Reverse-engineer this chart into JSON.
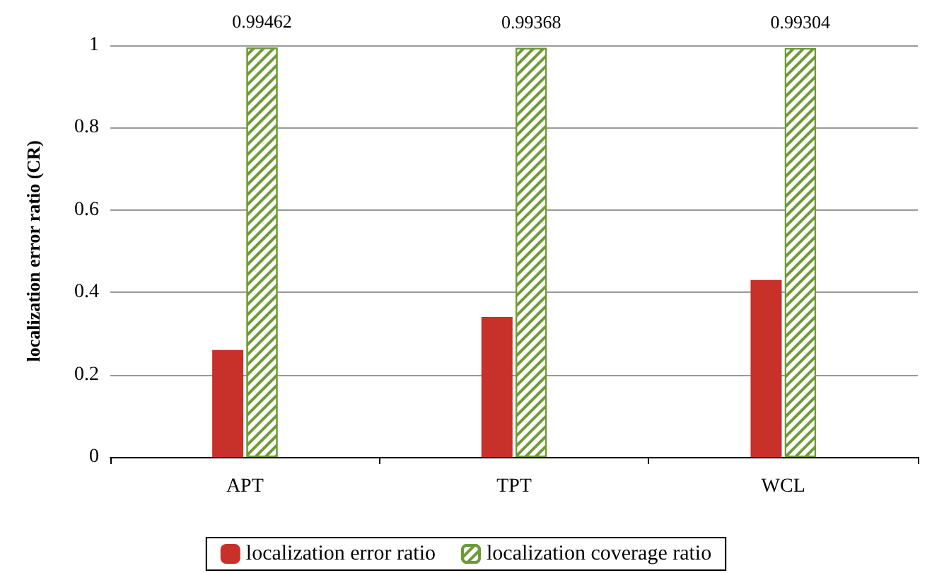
{
  "chart_data": {
    "type": "bar",
    "ylabel": "localization error ratio (CR)",
    "categories": [
      "APT",
      "TPT",
      "WCL"
    ],
    "series": [
      {
        "name": "localization error ratio",
        "color": "#c8302a",
        "values": [
          0.26,
          0.34,
          0.43
        ]
      },
      {
        "name": "localization coverage ratio",
        "color": "#6e9b35",
        "values": [
          0.99462,
          0.99368,
          0.99304
        ],
        "value_labels": [
          "0.99462",
          "0.99368",
          "0.99304"
        ]
      }
    ],
    "ylim": [
      0,
      1
    ],
    "yticks": [
      0,
      0.2,
      0.4,
      0.6,
      0.8,
      1
    ],
    "grid": "y",
    "legend": "bottom"
  }
}
